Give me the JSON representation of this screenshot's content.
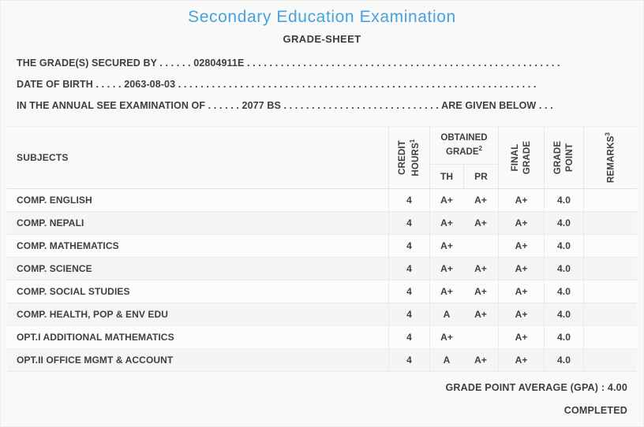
{
  "header": {
    "title": "Secondary Education Examination",
    "subtitle": "GRADE-SHEET"
  },
  "info_lines": {
    "grades_secured": "THE GRADE(S) SECURED BY . . . . . . 02804911E . . . . . . . . . . . . . . . . . . . . . . . . . . . . . . . . . . . . . . . . . . . . . . . . . . . . . . . .",
    "date_of_birth": "DATE OF BIRTH . . . . . 2063-08-03 . . . . . . . . . . . . . . . . . . . . . . . . . . . . . . . . . . . . . . . . . . . . . . . . . . . . . . . . . . . . . . . .",
    "exam_year": "IN THE ANNUAL SEE EXAMINATION OF . . . . . . 2077 BS . . . . . . . . . . . . . . . . . . . . . . . . . . . . ARE GIVEN BELOW . . ."
  },
  "table": {
    "col_subjects": "SUBJECTS",
    "col_credit": {
      "line1": "CREDIT",
      "line2": "HOURS",
      "sup": "1"
    },
    "col_obtained": {
      "label": "OBTAINED GRADE",
      "sup": "2",
      "sub_th": "TH",
      "sub_pr": "PR"
    },
    "col_final": {
      "line1": "FINAL",
      "line2": "GRADE"
    },
    "col_gpoint": {
      "line1": "GRADE",
      "line2": "POINT"
    },
    "col_remarks": {
      "label": "REMARKS",
      "sup": "3"
    },
    "rows": [
      {
        "subject": "COMP. ENGLISH",
        "credit": "4",
        "th": "A+",
        "pr": "A+",
        "final": "A+",
        "gp": "4.0",
        "remarks": ""
      },
      {
        "subject": "COMP. NEPALI",
        "credit": "4",
        "th": "A+",
        "pr": "A+",
        "final": "A+",
        "gp": "4.0",
        "remarks": ""
      },
      {
        "subject": "COMP. MATHEMATICS",
        "credit": "4",
        "th": "A+",
        "pr": "",
        "final": "A+",
        "gp": "4.0",
        "remarks": ""
      },
      {
        "subject": "COMP. SCIENCE",
        "credit": "4",
        "th": "A+",
        "pr": "A+",
        "final": "A+",
        "gp": "4.0",
        "remarks": ""
      },
      {
        "subject": "COMP. SOCIAL STUDIES",
        "credit": "4",
        "th": "A+",
        "pr": "A+",
        "final": "A+",
        "gp": "4.0",
        "remarks": ""
      },
      {
        "subject": "COMP. HEALTH, POP & ENV EDU",
        "credit": "4",
        "th": "A",
        "pr": "A+",
        "final": "A+",
        "gp": "4.0",
        "remarks": ""
      },
      {
        "subject": "OPT.I ADDITIONAL MATHEMATICS",
        "credit": "4",
        "th": "A+",
        "pr": "",
        "final": "A+",
        "gp": "4.0",
        "remarks": ""
      },
      {
        "subject": "OPT.II OFFICE MGMT & ACCOUNT",
        "credit": "4",
        "th": "A",
        "pr": "A+",
        "final": "A+",
        "gp": "4.0",
        "remarks": ""
      }
    ]
  },
  "footer": {
    "gpa": "GRADE POINT AVERAGE (GPA) : 4.00",
    "status": "COMPLETED"
  },
  "colors": {
    "title_blue": "#45a3dd",
    "text_dark": "#3e3e3e",
    "page_bg": "#f9f9f9"
  }
}
